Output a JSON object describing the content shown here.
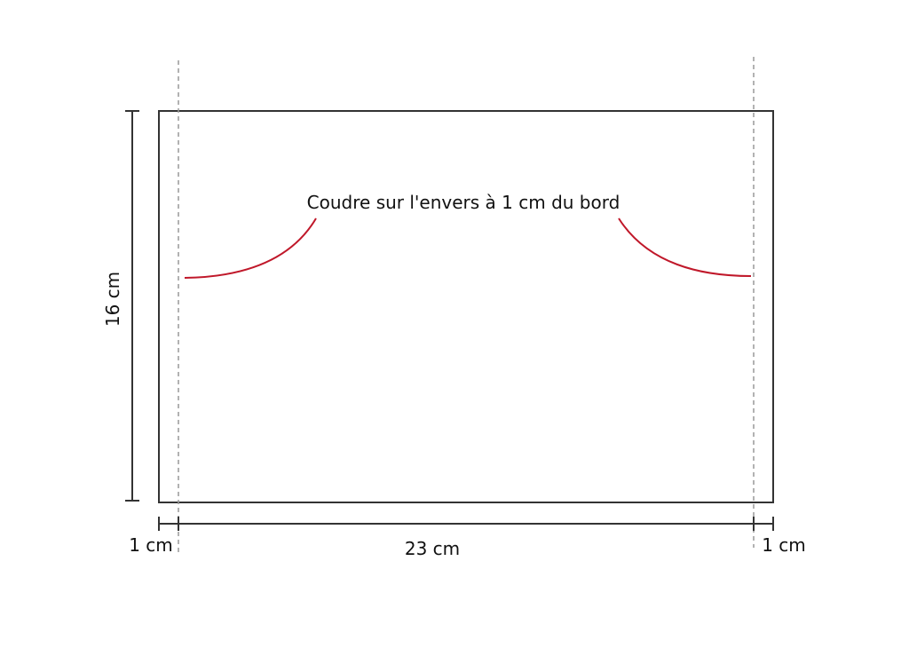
{
  "diagram": {
    "annotation": "Coudre sur l'envers à 1 cm du bord",
    "height_label": "16 cm",
    "width_label": "23 cm",
    "left_margin_label": "1 cm",
    "right_margin_label": "1 cm"
  },
  "colors": {
    "outline": "#333333",
    "dashed_guide": "#999999",
    "stitch_curve": "#c0182a",
    "text": "#111111",
    "background": "#ffffff"
  }
}
